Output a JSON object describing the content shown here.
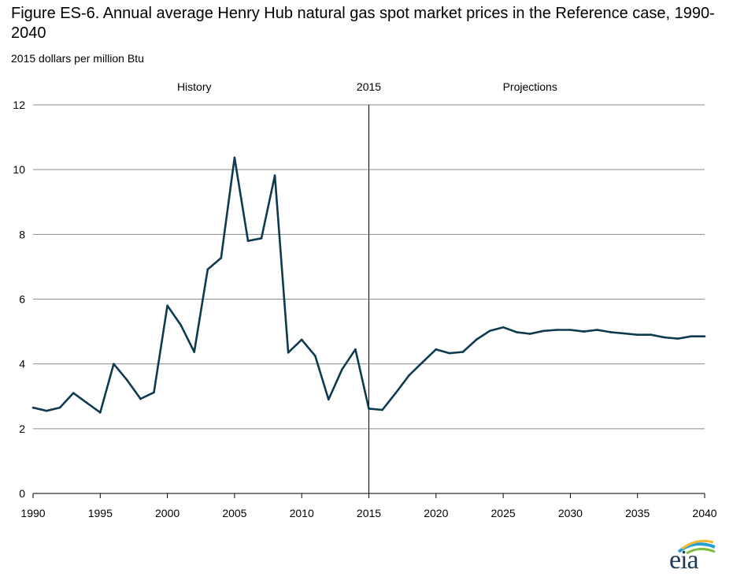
{
  "header": {
    "title": "Figure ES-6. Annual average Henry Hub natural gas spot market prices in the Reference case, 1990-2040",
    "subtitle": "2015 dollars per million Btu"
  },
  "logo": {
    "text": "eia",
    "icon": "eia-logo"
  },
  "colors": {
    "line": "#0d3a4f",
    "grid": "#8c8c8c",
    "divider": "#000000"
  },
  "chart_data": {
    "type": "line",
    "title": "Figure ES-6. Annual average Henry Hub natural gas spot market prices in the Reference case, 1990-2040",
    "ylabel": "2015 dollars per million Btu",
    "xlabel": "",
    "xlim": [
      1990,
      2040
    ],
    "ylim": [
      0,
      12
    ],
    "x_ticks": [
      1990,
      1995,
      2000,
      2005,
      2010,
      2015,
      2020,
      2025,
      2030,
      2035,
      2040
    ],
    "y_ticks": [
      0,
      2,
      4,
      6,
      8,
      10,
      12
    ],
    "grid": "horizontal",
    "annotations": [
      {
        "text": "History",
        "x": 2002
      },
      {
        "text": "2015",
        "x": 2015
      },
      {
        "text": "Projections",
        "x": 2027
      }
    ],
    "divider_x": 2015,
    "series": [
      {
        "x": [
          1990,
          1991,
          1992,
          1993,
          1994,
          1995,
          1996,
          1997,
          1998,
          1999,
          2000,
          2001,
          2002,
          2003,
          2004,
          2005,
          2006,
          2007,
          2008,
          2009,
          2010,
          2011,
          2012,
          2013,
          2014,
          2015,
          2016,
          2017,
          2018,
          2019,
          2020,
          2021,
          2022,
          2023,
          2024,
          2025,
          2026,
          2027,
          2028,
          2029,
          2030,
          2031,
          2032,
          2033,
          2034,
          2035,
          2036,
          2037,
          2038,
          2039,
          2040
        ],
        "values": [
          2.65,
          2.55,
          2.65,
          3.1,
          2.8,
          2.5,
          4.0,
          3.5,
          2.92,
          3.12,
          5.8,
          5.2,
          4.37,
          6.92,
          7.27,
          10.37,
          7.8,
          7.88,
          9.82,
          4.35,
          4.75,
          4.25,
          2.9,
          3.83,
          4.45,
          2.62,
          2.58,
          3.1,
          3.65,
          4.05,
          4.45,
          4.33,
          4.37,
          4.75,
          5.02,
          5.13,
          4.98,
          4.93,
          5.02,
          5.05,
          5.05,
          5.0,
          5.05,
          4.98,
          4.94,
          4.9,
          4.9,
          4.82,
          4.78,
          4.85,
          4.85
        ]
      }
    ]
  }
}
